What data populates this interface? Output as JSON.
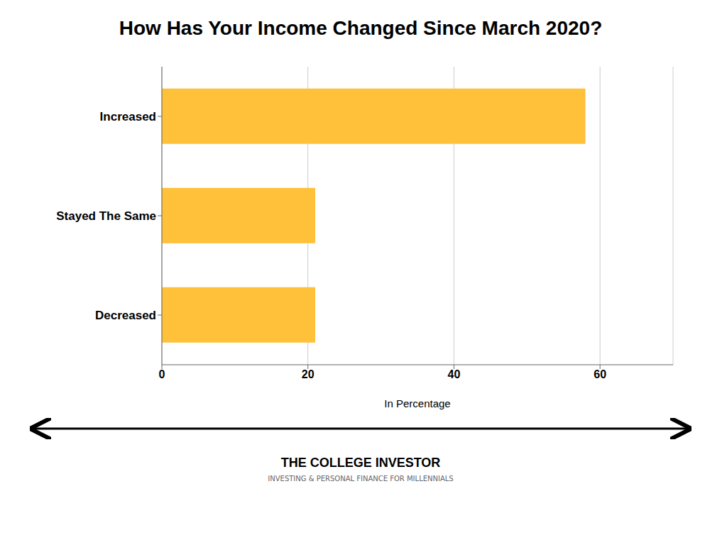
{
  "chart_data": {
    "type": "bar",
    "orientation": "horizontal",
    "title": "How Has Your Income Changed Since March 2020?",
    "categories": [
      "Increased",
      "Stayed The Same",
      "Decreased"
    ],
    "values": [
      58,
      21,
      21
    ],
    "color": "#FFC03A",
    "xlabel": "In Percentage",
    "xlim": [
      0,
      70
    ],
    "xticks": [
      0,
      20,
      40,
      60
    ],
    "grid": true,
    "annotations": [
      "THE COLLEGE INVESTOR",
      "INVESTING & PERSONAL FINANCE FOR MILLENNIALS"
    ]
  }
}
